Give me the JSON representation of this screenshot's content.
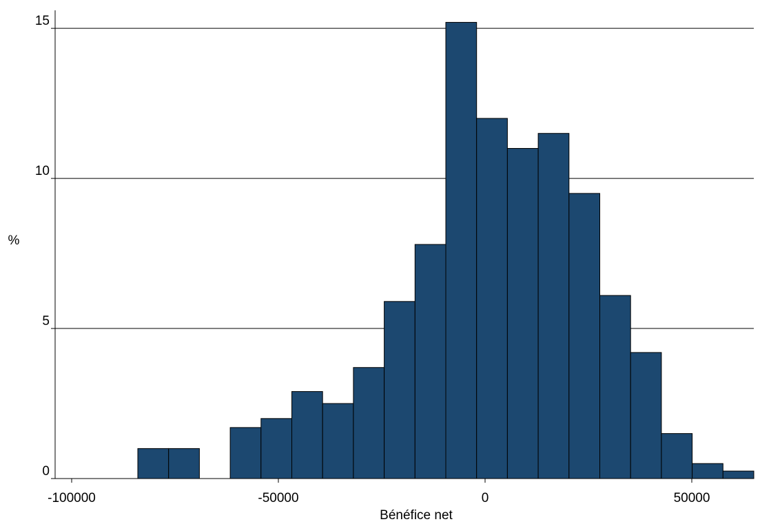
{
  "chart_data": {
    "type": "histogram",
    "x_label": "Bénéfice net",
    "y_label": "%",
    "bins": [
      -84000,
      -76550,
      -69100,
      -61650,
      -54200,
      -46750,
      -39300,
      -31850,
      -24400,
      -16950,
      -9500,
      -2050,
      5400,
      12850,
      20300,
      27750,
      35200,
      42650,
      50100,
      57550,
      65000
    ],
    "values": [
      1.0,
      1.0,
      0,
      1.7,
      2.0,
      2.9,
      2.5,
      3.7,
      5.9,
      7.8,
      15.2,
      12.0,
      11.0,
      11.5,
      9.5,
      6.1,
      4.2,
      1.5,
      0.5,
      0.25
    ],
    "color": "#1c4870",
    "xlim": [
      -104000,
      65000
    ],
    "ylim": [
      0,
      15.6
    ],
    "xticks": [
      -100000,
      -50000,
      0,
      50000
    ],
    "yticks": [
      0,
      5,
      10,
      15
    ],
    "grid": true
  }
}
